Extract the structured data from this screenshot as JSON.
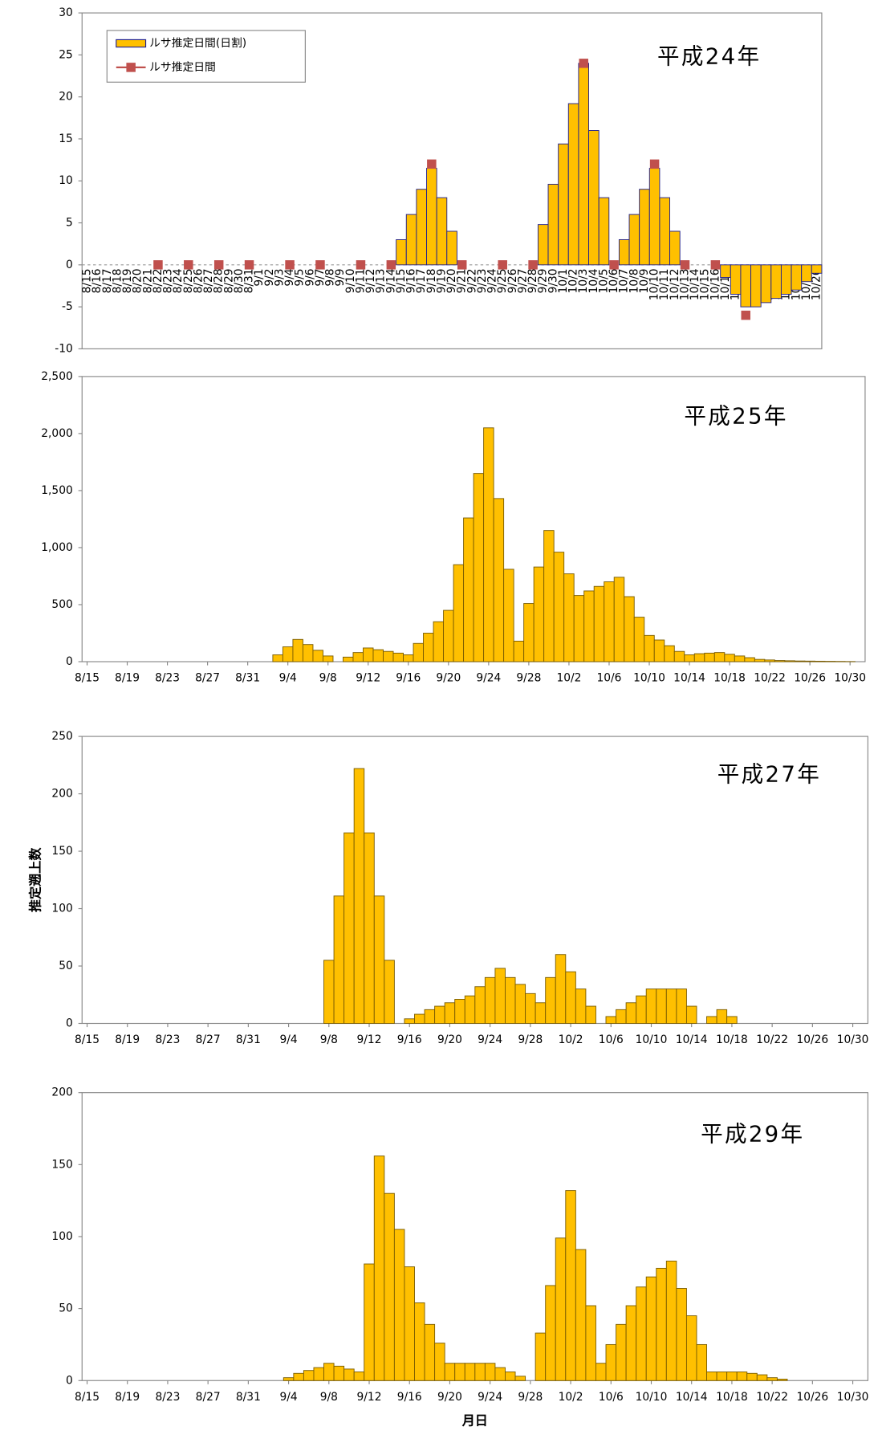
{
  "chart_data": [
    {
      "type": "bar",
      "title": "平成24年",
      "legend": "upper left",
      "categories": [
        "8/15",
        "8/16",
        "8/17",
        "8/18",
        "8/19",
        "8/20",
        "8/21",
        "8/22",
        "8/23",
        "8/24",
        "8/25",
        "8/26",
        "8/27",
        "8/28",
        "8/29",
        "8/30",
        "8/31",
        "9/1",
        "9/2",
        "9/3",
        "9/4",
        "9/5",
        "9/6",
        "9/7",
        "9/8",
        "9/9",
        "9/10",
        "9/11",
        "9/12",
        "9/13",
        "9/14",
        "9/15",
        "9/16",
        "9/17",
        "9/18",
        "9/19",
        "9/20",
        "9/21",
        "9/22",
        "9/23",
        "9/24",
        "9/25",
        "9/26",
        "9/27",
        "9/28",
        "9/29",
        "9/30",
        "10/1",
        "10/2",
        "10/3",
        "10/4",
        "10/5",
        "10/6",
        "10/7",
        "10/8",
        "10/9",
        "10/10",
        "10/11",
        "10/12",
        "10/13",
        "10/14",
        "10/15",
        "10/16",
        "10/17",
        "10/18",
        "10/19",
        "10/20",
        "10/21",
        "10/22",
        "10/23",
        "10/24",
        "10/25",
        "10/26"
      ],
      "series": [
        {
          "name": "ルサ推定日間(日割)",
          "type": "bar",
          "color": "#ffc000",
          "values": [
            0,
            0,
            0,
            0,
            0,
            0,
            0,
            0,
            0,
            0,
            0,
            0,
            0,
            0,
            0,
            0,
            0,
            0,
            0,
            0,
            0,
            0,
            0,
            0,
            0,
            0,
            0,
            0,
            0,
            0,
            0,
            3,
            6,
            9,
            11.5,
            8,
            4,
            0,
            0,
            0,
            0,
            0,
            0,
            0,
            0,
            4.8,
            9.6,
            14.4,
            19.2,
            24,
            16,
            8,
            0,
            3,
            6,
            9,
            11.5,
            8,
            4,
            0,
            0,
            0,
            0,
            -1.5,
            -3.5,
            -5,
            -5,
            -4.5,
            -4,
            -3.5,
            -3,
            -2,
            -1
          ]
        },
        {
          "name": "ルサ推定日間",
          "type": "line",
          "color": "#c0504d",
          "values": [
            null,
            null,
            null,
            null,
            null,
            null,
            null,
            0,
            null,
            null,
            0,
            null,
            null,
            0,
            null,
            null,
            0,
            null,
            null,
            null,
            0,
            null,
            null,
            0,
            null,
            null,
            null,
            0,
            null,
            null,
            0,
            null,
            null,
            null,
            12,
            null,
            null,
            0,
            null,
            null,
            null,
            0,
            null,
            null,
            0,
            null,
            null,
            null,
            null,
            24,
            null,
            null,
            0,
            null,
            null,
            null,
            12,
            null,
            null,
            0,
            null,
            null,
            0,
            null,
            null,
            -6,
            null,
            null,
            null,
            null,
            null,
            null,
            null
          ]
        }
      ],
      "ylim": [
        -10,
        30
      ],
      "yticks": [
        -10,
        -5,
        0,
        5,
        10,
        15,
        20,
        25,
        30
      ]
    },
    {
      "type": "bar",
      "title": "平成25年",
      "color": "#ffc000",
      "categories": [
        "8/15",
        null,
        null,
        null,
        "8/19",
        null,
        null,
        null,
        "8/23",
        null,
        null,
        null,
        "8/27",
        null,
        null,
        null,
        "8/31",
        null,
        null,
        null,
        "9/4",
        null,
        null,
        null,
        "9/8",
        null,
        null,
        null,
        "9/12",
        null,
        null,
        null,
        "9/16",
        null,
        null,
        null,
        "9/20",
        null,
        null,
        null,
        "9/24",
        null,
        null,
        null,
        "9/28",
        null,
        null,
        null,
        "10/2",
        null,
        null,
        null,
        "10/6",
        null,
        null,
        null,
        "10/10",
        null,
        null,
        null,
        "10/14",
        null,
        null,
        null,
        "10/18",
        null,
        null,
        null,
        "10/22",
        null,
        null,
        null,
        "10/26",
        null,
        null,
        null,
        "10/30",
        null
      ],
      "values": [
        0,
        0,
        0,
        0,
        0,
        0,
        0,
        0,
        0,
        0,
        0,
        0,
        0,
        0,
        0,
        0,
        0,
        0,
        0,
        60,
        130,
        195,
        150,
        100,
        50,
        0,
        40,
        80,
        120,
        105,
        90,
        75,
        60,
        160,
        250,
        350,
        450,
        850,
        1260,
        1650,
        2050,
        1430,
        810,
        180,
        510,
        830,
        1150,
        960,
        770,
        580,
        620,
        660,
        700,
        740,
        570,
        390,
        230,
        190,
        140,
        90,
        60,
        70,
        75,
        80,
        65,
        50,
        35,
        20,
        15,
        10,
        8,
        6,
        5,
        4,
        3,
        2,
        1,
        0
      ],
      "ylim": [
        0,
        2500
      ],
      "yticks": [
        0,
        500,
        {
          "value": 1000,
          "label": "1,000"
        },
        {
          "value": 1500,
          "label": "1,500"
        },
        {
          "value": 2000,
          "label": "2,000"
        },
        {
          "value": 2500,
          "label": "2,500"
        }
      ]
    },
    {
      "type": "bar",
      "title": "平成27年",
      "color": "#ffc000",
      "ylabel": "推定遡上数",
      "categories": [
        "8/15",
        null,
        null,
        null,
        "8/19",
        null,
        null,
        null,
        "8/23",
        null,
        null,
        null,
        "8/27",
        null,
        null,
        null,
        "8/31",
        null,
        null,
        null,
        "9/4",
        null,
        null,
        null,
        "9/8",
        null,
        null,
        null,
        "9/12",
        null,
        null,
        null,
        "9/16",
        null,
        null,
        null,
        "9/20",
        null,
        null,
        null,
        "9/24",
        null,
        null,
        null,
        "9/28",
        null,
        null,
        null,
        "10/2",
        null,
        null,
        null,
        "10/6",
        null,
        null,
        null,
        "10/10",
        null,
        null,
        null,
        "10/14",
        null,
        null,
        null,
        "10/18",
        null,
        null,
        null,
        "10/22",
        null,
        null,
        null,
        "10/26",
        null,
        null,
        null,
        "10/30",
        null
      ],
      "values": [
        0,
        0,
        0,
        0,
        0,
        0,
        0,
        0,
        0,
        0,
        0,
        0,
        0,
        0,
        0,
        0,
        0,
        0,
        0,
        0,
        0,
        0,
        0,
        0,
        55,
        111,
        166,
        222,
        166,
        111,
        55,
        0,
        4,
        8,
        12,
        15,
        18,
        21,
        24,
        32,
        40,
        48,
        40,
        34,
        26,
        18,
        40,
        60,
        45,
        30,
        15,
        0,
        6,
        12,
        18,
        24,
        30,
        30,
        30,
        30,
        15,
        0,
        6,
        12,
        6,
        0,
        0,
        0,
        0,
        0,
        0,
        0,
        0,
        0,
        0,
        0,
        0,
        0
      ],
      "ylim": [
        0,
        250
      ],
      "yticks": [
        0,
        50,
        100,
        150,
        200,
        250
      ]
    },
    {
      "type": "bar",
      "title": "平成29年",
      "color": "#ffc000",
      "xlabel": "月日",
      "categories": [
        "8/15",
        null,
        null,
        null,
        "8/19",
        null,
        null,
        null,
        "8/23",
        null,
        null,
        null,
        "8/27",
        null,
        null,
        null,
        "8/31",
        null,
        null,
        null,
        "9/4",
        null,
        null,
        null,
        "9/8",
        null,
        null,
        null,
        "9/12",
        null,
        null,
        null,
        "9/16",
        null,
        null,
        null,
        "9/20",
        null,
        null,
        null,
        "9/24",
        null,
        null,
        null,
        "9/28",
        null,
        null,
        null,
        "10/2",
        null,
        null,
        null,
        "10/6",
        null,
        null,
        null,
        "10/10",
        null,
        null,
        null,
        "10/14",
        null,
        null,
        null,
        "10/18",
        null,
        null,
        null,
        "10/22",
        null,
        null,
        null,
        "10/26",
        null,
        null,
        null,
        "10/30",
        null
      ],
      "values": [
        0,
        0,
        0,
        0,
        0,
        0,
        0,
        0,
        0,
        0,
        0,
        0,
        0,
        0,
        0,
        0,
        0,
        0,
        0,
        0,
        2,
        5,
        7,
        9,
        12,
        10,
        8,
        6,
        81,
        156,
        130,
        105,
        79,
        54,
        39,
        26,
        12,
        12,
        12,
        12,
        12,
        9,
        6,
        3,
        0,
        33,
        66,
        99,
        132,
        91,
        52,
        12,
        25,
        39,
        52,
        65,
        72,
        78,
        83,
        64,
        45,
        25,
        6,
        6,
        6,
        6,
        5,
        4,
        2,
        1,
        0,
        0,
        0,
        0,
        0,
        0,
        0,
        0
      ],
      "ylim": [
        0,
        200
      ],
      "yticks": [
        0,
        50,
        100,
        150,
        200
      ]
    }
  ]
}
